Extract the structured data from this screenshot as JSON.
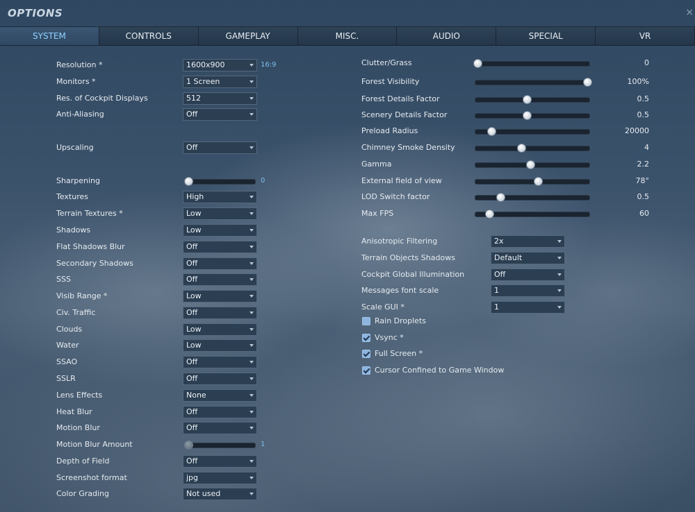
{
  "window": {
    "title": "OPTIONS",
    "close_glyph": "×"
  },
  "tabs": [
    {
      "label": "SYSTEM",
      "active": true
    },
    {
      "label": "CONTROLS"
    },
    {
      "label": "GAMEPLAY"
    },
    {
      "label": "MISC."
    },
    {
      "label": "AUDIO"
    },
    {
      "label": "SPECIAL"
    },
    {
      "label": "VR"
    }
  ],
  "left": {
    "resolution": {
      "label": "Resolution *",
      "value": "1600x900",
      "aspect": "16:9"
    },
    "monitors": {
      "label": "Monitors *",
      "value": "1 Screen"
    },
    "cockpit_res": {
      "label": "Res. of Cockpit Displays",
      "value": "512"
    },
    "anti_aliasing": {
      "label": "Anti-Aliasing",
      "value": "Off"
    },
    "upscaling": {
      "label": "Upscaling",
      "value": "Off"
    },
    "sharpening": {
      "label": "Sharpening",
      "value": "0",
      "level": 0.0
    },
    "textures": {
      "label": "Textures",
      "value": "High"
    },
    "terrain_textures": {
      "label": "Terrain Textures *",
      "value": "Low"
    },
    "shadows": {
      "label": "Shadows",
      "value": "Low"
    },
    "flat_shadows_blur": {
      "label": "Flat Shadows Blur",
      "value": "Off"
    },
    "secondary_shadows": {
      "label": "Secondary Shadows",
      "value": "Off"
    },
    "sss": {
      "label": "SSS",
      "value": "Off"
    },
    "visib_range": {
      "label": "Visib Range *",
      "value": "Low"
    },
    "civ_traffic": {
      "label": "Civ. Traffic",
      "value": "Off"
    },
    "clouds": {
      "label": "Clouds",
      "value": "Low"
    },
    "water": {
      "label": "Water",
      "value": "Low"
    },
    "ssao": {
      "label": "SSAO",
      "value": "Off"
    },
    "sslr": {
      "label": "SSLR",
      "value": "Off"
    },
    "lens_effects": {
      "label": "Lens Effects",
      "value": "None"
    },
    "heat_blur": {
      "label": "Heat Blur",
      "value": "Off"
    },
    "motion_blur": {
      "label": "Motion Blur",
      "value": "Off"
    },
    "motion_blur_amount": {
      "label": "Motion Blur Amount",
      "value": "1",
      "level": 0.0
    },
    "depth_of_field": {
      "label": "Depth of Field",
      "value": "Off"
    },
    "screenshot_format": {
      "label": "Screenshot format",
      "value": "jpg"
    },
    "color_grading": {
      "label": "Color Grading",
      "value": "Not used"
    }
  },
  "right": {
    "sliders": [
      {
        "key": "clutter",
        "label": "Clutter/Grass",
        "value": "0",
        "level": 0.02
      },
      {
        "key": "forest_visibility",
        "label": "Forest Visibility",
        "value": "100%",
        "level": 0.98
      },
      {
        "key": "forest_details",
        "label": "Forest Details Factor",
        "value": "0.5",
        "level": 0.45
      },
      {
        "key": "scenery_details",
        "label": "Scenery Details Factor",
        "value": "0.5",
        "level": 0.45
      },
      {
        "key": "preload_radius",
        "label": "Preload Radius",
        "value": "20000",
        "level": 0.14
      },
      {
        "key": "chimney_smoke",
        "label": "Chimney Smoke Density",
        "value": "4",
        "level": 0.4
      },
      {
        "key": "gamma",
        "label": "Gamma",
        "value": "2.2",
        "level": 0.48
      },
      {
        "key": "external_fov",
        "label": "External field of view",
        "value": "78°",
        "level": 0.55
      },
      {
        "key": "lod_switch",
        "label": "LOD Switch factor",
        "value": "0.5",
        "level": 0.22
      },
      {
        "key": "max_fps",
        "label": "Max FPS",
        "value": "60",
        "level": 0.12
      }
    ],
    "anisotropic": {
      "label": "Anisotropic Filtering",
      "value": "2x"
    },
    "terrain_obj_shadows": {
      "label": "Terrain Objects Shadows",
      "value": "Default"
    },
    "cockpit_gi": {
      "label": "Cockpit Global Illumination",
      "value": "Off"
    },
    "messages_font": {
      "label": "Messages font scale",
      "value": "1"
    },
    "scale_gui": {
      "label": "Scale GUI *",
      "value": "1"
    },
    "checkboxes": [
      {
        "key": "rain_droplets",
        "label": "Rain Droplets",
        "checked": false
      },
      {
        "key": "vsync",
        "label": "Vsync *",
        "checked": true
      },
      {
        "key": "full_screen",
        "label": "Full Screen *",
        "checked": true
      },
      {
        "key": "cursor_confined",
        "label": "Cursor Confined to Game Window",
        "checked": true
      }
    ]
  },
  "icons": {
    "close": "close-icon",
    "dropdown": "chevron-down-icon",
    "check": "checkmark-icon"
  },
  "colors": {
    "active_tab_text": "#8fd0ff",
    "accent_value": "#7fbfea"
  }
}
